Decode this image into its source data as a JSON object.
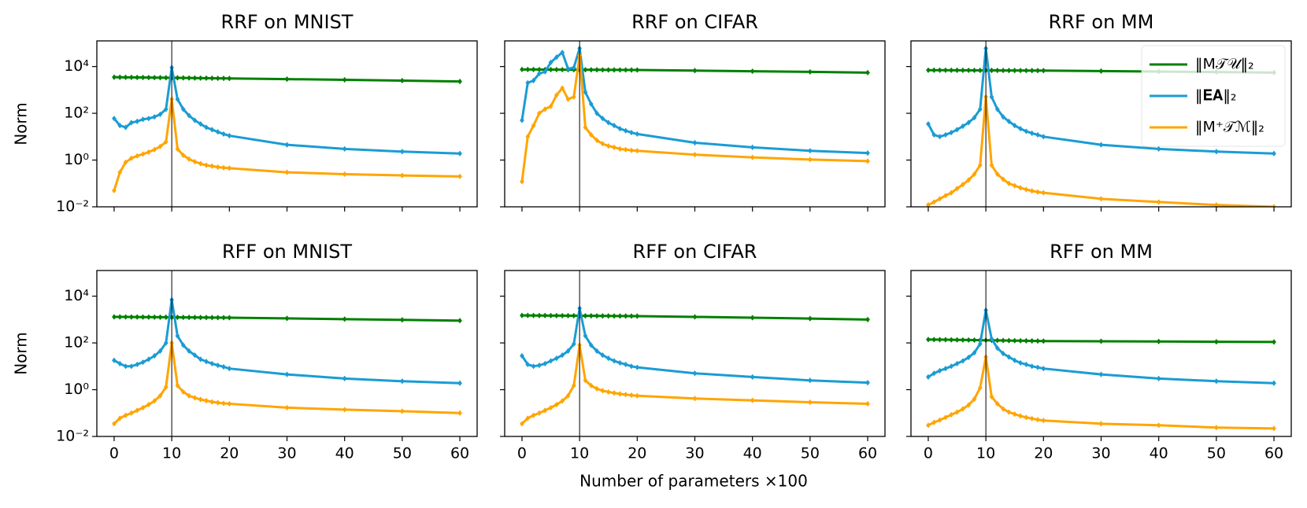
{
  "figure": {
    "xlabel": "Number of parameters ×100"
  },
  "chart_data": [
    {
      "type": "line",
      "title": "RRF on MNIST",
      "ylabel": "Norm",
      "log_y": true,
      "x": [
        0,
        1,
        2,
        3,
        4,
        5,
        6,
        7,
        8,
        9,
        10,
        11,
        12,
        13,
        14,
        15,
        16,
        17,
        18,
        19,
        20,
        30,
        40,
        50,
        60
      ],
      "xlim": [
        -3,
        63
      ],
      "xticks": [
        0,
        10,
        20,
        30,
        40,
        50,
        60
      ],
      "ylim": [
        0.01,
        125000
      ],
      "yticks": [
        {
          "value": 0.01,
          "label": "10⁻²"
        },
        {
          "value": 1,
          "label": "10⁰"
        },
        {
          "value": 100,
          "label": "10²"
        },
        {
          "value": 10000,
          "label": "10⁴"
        }
      ],
      "vline": 10,
      "series": [
        {
          "color": "#008000",
          "values": [
            3500,
            3480,
            3460,
            3440,
            3420,
            3400,
            3380,
            3360,
            3340,
            3320,
            3300,
            3280,
            3260,
            3240,
            3220,
            3200,
            3180,
            3160,
            3140,
            3120,
            3100,
            2900,
            2700,
            2500,
            2300
          ]
        },
        {
          "color": "#1a9cd4",
          "values": [
            60,
            30,
            25,
            40,
            45,
            55,
            60,
            70,
            90,
            150,
            9000,
            400,
            150,
            80,
            50,
            35,
            25,
            20,
            16,
            13,
            11,
            4.5,
            3,
            2.3,
            1.9
          ]
        },
        {
          "color": "#ffa500",
          "values": [
            0.05,
            0.3,
            0.8,
            1.2,
            1.5,
            1.8,
            2.2,
            2.8,
            3.8,
            6,
            400,
            3,
            1.6,
            1.1,
            0.85,
            0.7,
            0.6,
            0.55,
            0.5,
            0.47,
            0.45,
            0.3,
            0.25,
            0.22,
            0.2
          ]
        }
      ]
    },
    {
      "type": "line",
      "title": "RRF on CIFAR",
      "log_y": true,
      "x": [
        0,
        1,
        2,
        3,
        4,
        5,
        6,
        7,
        8,
        9,
        10,
        11,
        12,
        13,
        14,
        15,
        16,
        17,
        18,
        19,
        20,
        30,
        40,
        50,
        60
      ],
      "xlim": [
        -3,
        63
      ],
      "xticks": [
        0,
        10,
        20,
        30,
        40,
        50,
        60
      ],
      "ylim": [
        0.01,
        125000
      ],
      "yticks": [
        0.01,
        1,
        100,
        10000
      ],
      "vline": 10,
      "series": [
        {
          "color": "#008000",
          "values": [
            7500,
            7480,
            7460,
            7440,
            7420,
            7400,
            7380,
            7360,
            7340,
            7320,
            7300,
            7280,
            7260,
            7240,
            7220,
            7200,
            7180,
            7160,
            7140,
            7120,
            7100,
            6700,
            6300,
            5900,
            5500
          ]
        },
        {
          "color": "#1a9cd4",
          "values": [
            50,
            2000,
            2500,
            5000,
            6000,
            15000,
            25000,
            40000,
            8000,
            9000,
            60000,
            800,
            250,
            100,
            60,
            40,
            30,
            22,
            18,
            15,
            13,
            5.5,
            3.5,
            2.5,
            2
          ]
        },
        {
          "color": "#ffa500",
          "values": [
            0.12,
            10,
            30,
            100,
            150,
            200,
            600,
            1200,
            400,
            500,
            30000,
            25,
            12,
            7,
            5,
            4,
            3.5,
            3,
            2.8,
            2.6,
            2.5,
            1.7,
            1.3,
            1.05,
            0.9
          ]
        }
      ]
    },
    {
      "type": "line",
      "title": "RRF on MM",
      "log_y": true,
      "legend": "upper right",
      "x": [
        0,
        1,
        2,
        3,
        4,
        5,
        6,
        7,
        8,
        9,
        10,
        11,
        12,
        13,
        14,
        15,
        16,
        17,
        18,
        19,
        20,
        30,
        40,
        50,
        60
      ],
      "xlim": [
        -3,
        63
      ],
      "xticks": [
        0,
        10,
        20,
        30,
        40,
        50,
        60
      ],
      "ylim": [
        0.01,
        125000
      ],
      "yticks": [
        0.01,
        1,
        100,
        10000
      ],
      "vline": 10,
      "series": [
        {
          "name": "‖M𝒯𝒰‖₂",
          "color": "#008000",
          "values": [
            7000,
            6985,
            6970,
            6955,
            6940,
            6925,
            6910,
            6895,
            6880,
            6865,
            6850,
            6835,
            6820,
            6805,
            6790,
            6775,
            6760,
            6745,
            6730,
            6715,
            6700,
            6400,
            6100,
            5800,
            5500
          ]
        },
        {
          "name": "‖𝐄𝐀‖₂",
          "color": "#1a9cd4",
          "values": [
            35,
            12,
            10,
            12,
            15,
            20,
            28,
            40,
            65,
            150,
            60000,
            500,
            150,
            70,
            45,
            30,
            22,
            17,
            14,
            12,
            10,
            4.5,
            3,
            2.3,
            1.9
          ]
        },
        {
          "name": "‖M⁺𝒯ℳ‖₂",
          "color": "#ffa500",
          "values": [
            0.012,
            0.016,
            0.022,
            0.03,
            0.04,
            0.06,
            0.09,
            0.14,
            0.25,
            0.6,
            500,
            0.6,
            0.25,
            0.15,
            0.1,
            0.08,
            0.065,
            0.055,
            0.048,
            0.043,
            0.04,
            0.022,
            0.016,
            0.012,
            0.01
          ]
        }
      ]
    },
    {
      "type": "line",
      "title": "RFF on MNIST",
      "ylabel": "Norm",
      "log_y": true,
      "x": [
        0,
        1,
        2,
        3,
        4,
        5,
        6,
        7,
        8,
        9,
        10,
        11,
        12,
        13,
        14,
        15,
        16,
        17,
        18,
        19,
        20,
        30,
        40,
        50,
        60
      ],
      "xlim": [
        -3,
        63
      ],
      "xticks": [
        0,
        10,
        20,
        30,
        40,
        50,
        60
      ],
      "ylim": [
        0.01,
        125000
      ],
      "yticks": [
        {
          "value": 0.01,
          "label": "10⁻²"
        },
        {
          "value": 1,
          "label": "10⁰"
        },
        {
          "value": 100,
          "label": "10²"
        },
        {
          "value": 10000,
          "label": "10⁴"
        }
      ],
      "vline": 10,
      "series": [
        {
          "color": "#008000",
          "values": [
            1300,
            1295,
            1290,
            1285,
            1280,
            1275,
            1270,
            1265,
            1260,
            1255,
            1250,
            1245,
            1240,
            1235,
            1230,
            1225,
            1220,
            1215,
            1210,
            1205,
            1200,
            1120,
            1040,
            970,
            900
          ]
        },
        {
          "color": "#1a9cd4",
          "values": [
            18,
            13,
            10,
            10,
            12,
            15,
            20,
            28,
            45,
            100,
            7000,
            200,
            80,
            45,
            30,
            20,
            16,
            13,
            11,
            9.5,
            8,
            4.5,
            3,
            2.3,
            1.9
          ]
        },
        {
          "color": "#ffa500",
          "values": [
            0.035,
            0.06,
            0.08,
            0.1,
            0.13,
            0.17,
            0.23,
            0.33,
            0.55,
            1.3,
            100,
            1.5,
            0.8,
            0.55,
            0.45,
            0.38,
            0.34,
            0.3,
            0.28,
            0.26,
            0.25,
            0.17,
            0.14,
            0.12,
            0.1
          ]
        }
      ]
    },
    {
      "type": "line",
      "title": "RFF on CIFAR",
      "log_y": true,
      "x": [
        0,
        1,
        2,
        3,
        4,
        5,
        6,
        7,
        8,
        9,
        10,
        11,
        12,
        13,
        14,
        15,
        16,
        17,
        18,
        19,
        20,
        30,
        40,
        50,
        60
      ],
      "xlim": [
        -3,
        63
      ],
      "xticks": [
        0,
        10,
        20,
        30,
        40,
        50,
        60
      ],
      "ylim": [
        0.01,
        125000
      ],
      "yticks": [
        0.01,
        1,
        100,
        10000
      ],
      "vline": 10,
      "series": [
        {
          "color": "#008000",
          "values": [
            1500,
            1495,
            1490,
            1485,
            1480,
            1475,
            1470,
            1465,
            1460,
            1455,
            1450,
            1445,
            1440,
            1435,
            1430,
            1425,
            1420,
            1415,
            1410,
            1405,
            1400,
            1300,
            1200,
            1100,
            1000
          ]
        },
        {
          "color": "#1a9cd4",
          "values": [
            28,
            12,
            10,
            11,
            13,
            17,
            22,
            30,
            45,
            90,
            3000,
            200,
            80,
            45,
            30,
            22,
            17,
            14,
            12,
            10,
            9,
            5,
            3.5,
            2.5,
            2
          ]
        },
        {
          "color": "#ffa500",
          "values": [
            0.035,
            0.06,
            0.08,
            0.1,
            0.13,
            0.17,
            0.23,
            0.33,
            0.55,
            1.5,
            80,
            2.5,
            1.5,
            1.1,
            0.9,
            0.8,
            0.72,
            0.66,
            0.62,
            0.58,
            0.55,
            0.42,
            0.35,
            0.29,
            0.25
          ]
        }
      ]
    },
    {
      "type": "line",
      "title": "RFF on MM",
      "log_y": true,
      "x": [
        0,
        1,
        2,
        3,
        4,
        5,
        6,
        7,
        8,
        9,
        10,
        11,
        12,
        13,
        14,
        15,
        16,
        17,
        18,
        19,
        20,
        30,
        40,
        50,
        60
      ],
      "xlim": [
        -3,
        63
      ],
      "xticks": [
        0,
        10,
        20,
        30,
        40,
        50,
        60
      ],
      "ylim": [
        0.01,
        125000
      ],
      "yticks": [
        0.01,
        1,
        100,
        10000
      ],
      "vline": 10,
      "series": [
        {
          "color": "#008000",
          "values": [
            140,
            139,
            138,
            137,
            136,
            135,
            134,
            133,
            132,
            131,
            130,
            129,
            128,
            127,
            126,
            125,
            124,
            123,
            122,
            121,
            120,
            118,
            115,
            112,
            110
          ]
        },
        {
          "color": "#1a9cd4",
          "values": [
            3.5,
            5,
            6.5,
            8,
            10,
            13,
            17,
            24,
            38,
            90,
            2500,
            150,
            60,
            35,
            25,
            18,
            14,
            12,
            10,
            9,
            8,
            4.5,
            3,
            2.3,
            1.9
          ]
        },
        {
          "color": "#ffa500",
          "values": [
            0.03,
            0.04,
            0.05,
            0.065,
            0.085,
            0.11,
            0.15,
            0.22,
            0.4,
            1.2,
            25,
            0.5,
            0.25,
            0.15,
            0.11,
            0.09,
            0.075,
            0.065,
            0.058,
            0.052,
            0.048,
            0.035,
            0.03,
            0.024,
            0.022
          ]
        }
      ]
    }
  ]
}
